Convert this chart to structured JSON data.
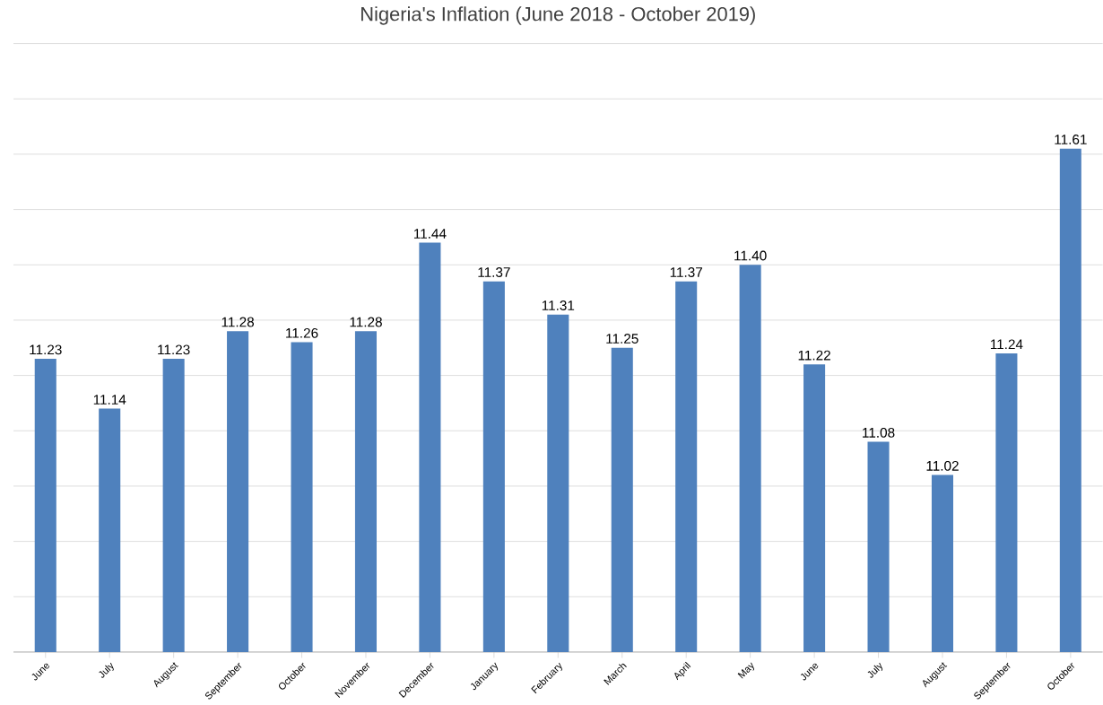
{
  "chart_data": {
    "type": "bar",
    "title": "Nigeria's Inflation (June 2018 - October 2019)",
    "categories": [
      "June",
      "July",
      "August",
      "September",
      "October",
      "November",
      "December",
      "January",
      "February",
      "March",
      "April",
      "May",
      "June",
      "July",
      "August",
      "September",
      "October"
    ],
    "values": [
      11.23,
      11.14,
      11.23,
      11.28,
      11.26,
      11.28,
      11.44,
      11.37,
      11.31,
      11.25,
      11.37,
      11.4,
      11.22,
      11.08,
      11.02,
      11.24,
      11.61
    ],
    "color": "#4f81bd",
    "grid": "y",
    "tick_labels": "x",
    "value_labels": [
      "11.23",
      "11.14",
      "11.23",
      "11.28",
      "11.26",
      "11.28",
      "11.44",
      "11.37",
      "11.31",
      "11.25",
      "11.37",
      "11.40",
      "11.22",
      "11.08",
      "11.02",
      "11.24",
      "11.61"
    ],
    "ylim": [
      10.7,
      11.8
    ],
    "yticks": [
      {
        "value": 10.7,
        "label": null
      },
      {
        "value": 10.8,
        "label": null
      },
      {
        "value": 10.9,
        "label": null
      },
      {
        "value": 11.0,
        "label": null
      },
      {
        "value": 11.1,
        "label": null
      },
      {
        "value": 11.2,
        "label": null
      },
      {
        "value": 11.3,
        "label": null
      },
      {
        "value": 11.4,
        "label": null
      },
      {
        "value": 11.5,
        "label": null
      },
      {
        "value": 11.6,
        "label": null
      },
      {
        "value": 11.7,
        "label": null
      },
      {
        "value": 11.8,
        "label": null
      }
    ]
  }
}
